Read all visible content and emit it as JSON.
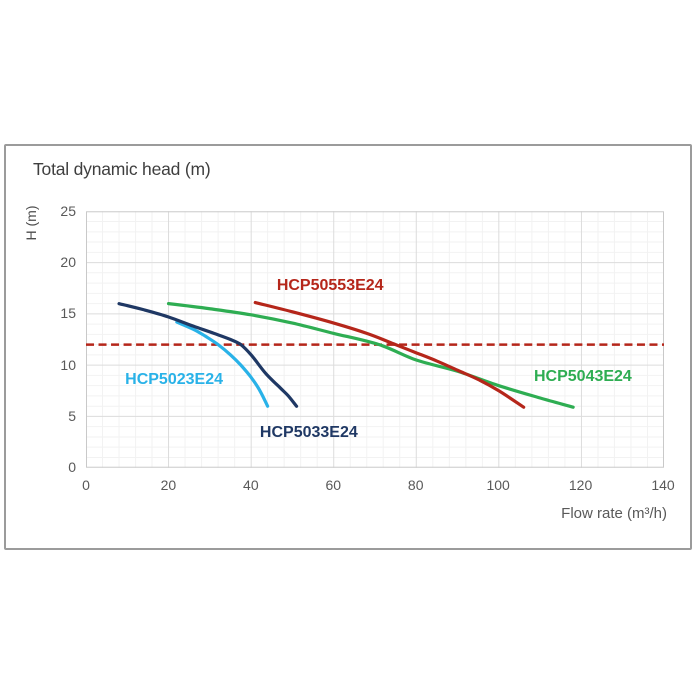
{
  "chart_data": {
    "type": "line",
    "title": "Total dynamic head (m)",
    "y_axis_label": "H (m)",
    "x_axis_label": "Flow rate (m³/h)",
    "xlim": [
      0,
      140
    ],
    "ylim": [
      0,
      25
    ],
    "x_ticks": [
      0,
      20,
      40,
      60,
      80,
      100,
      120,
      140
    ],
    "y_ticks": [
      0,
      5,
      10,
      15,
      20,
      25
    ],
    "x_minor_step": 4,
    "y_minor_step": 1,
    "grid": "major and minor gridlines, light gray",
    "legend_position": "labels next to curves",
    "reference_line": {
      "y": 12,
      "color": "#b5261a",
      "style": "dashed"
    },
    "series": [
      {
        "name": "HCP5023E24",
        "color": "#29b2e8",
        "points": [
          [
            22,
            14.2
          ],
          [
            26,
            13.5
          ],
          [
            29,
            12.8
          ],
          [
            32,
            12.0
          ],
          [
            35,
            11.0
          ],
          [
            37.5,
            10.0
          ],
          [
            40,
            8.8
          ],
          [
            42,
            7.6
          ],
          [
            44,
            6.0
          ]
        ],
        "label_anchor": {
          "x": 9.5,
          "y": 9.4
        }
      },
      {
        "name": "HCP5033E24",
        "color": "#1f3864",
        "points": [
          [
            8,
            16.0
          ],
          [
            14,
            15.4
          ],
          [
            20,
            14.7
          ],
          [
            26,
            13.8
          ],
          [
            31,
            13.1
          ],
          [
            35,
            12.5
          ],
          [
            37.5,
            12.0
          ],
          [
            40,
            11.0
          ],
          [
            43.5,
            9.2
          ],
          [
            47,
            7.8
          ],
          [
            49,
            7.0
          ],
          [
            51,
            6.0
          ]
        ],
        "label_anchor": {
          "x": 42.2,
          "y": 4.2
        }
      },
      {
        "name": "HCP5043E24",
        "color": "#2ead52",
        "points": [
          [
            20,
            16.0
          ],
          [
            30,
            15.5
          ],
          [
            40,
            14.9
          ],
          [
            50,
            14.1
          ],
          [
            60,
            13.1
          ],
          [
            71,
            12.0
          ],
          [
            80,
            10.5
          ],
          [
            90,
            9.4
          ],
          [
            100,
            8.0
          ],
          [
            110,
            6.8
          ],
          [
            118,
            5.9
          ]
        ],
        "label_anchor": {
          "x": 108.7,
          "y": 9.7
        }
      },
      {
        "name": "HCP50553E24",
        "color": "#b5261a",
        "points": [
          [
            41,
            16.1
          ],
          [
            50,
            15.2
          ],
          [
            60,
            14.1
          ],
          [
            68,
            13.1
          ],
          [
            75,
            12.0
          ],
          [
            80,
            11.2
          ],
          [
            85,
            10.4
          ],
          [
            90,
            9.5
          ],
          [
            95,
            8.6
          ],
          [
            100,
            7.5
          ],
          [
            106,
            5.9
          ]
        ],
        "label_anchor": {
          "x": 46.3,
          "y": 18.6
        }
      }
    ],
    "grid_colors": {
      "minor": "#f2f2f2",
      "major": "#dcdcdc",
      "outline": "#c9c9c9"
    }
  }
}
